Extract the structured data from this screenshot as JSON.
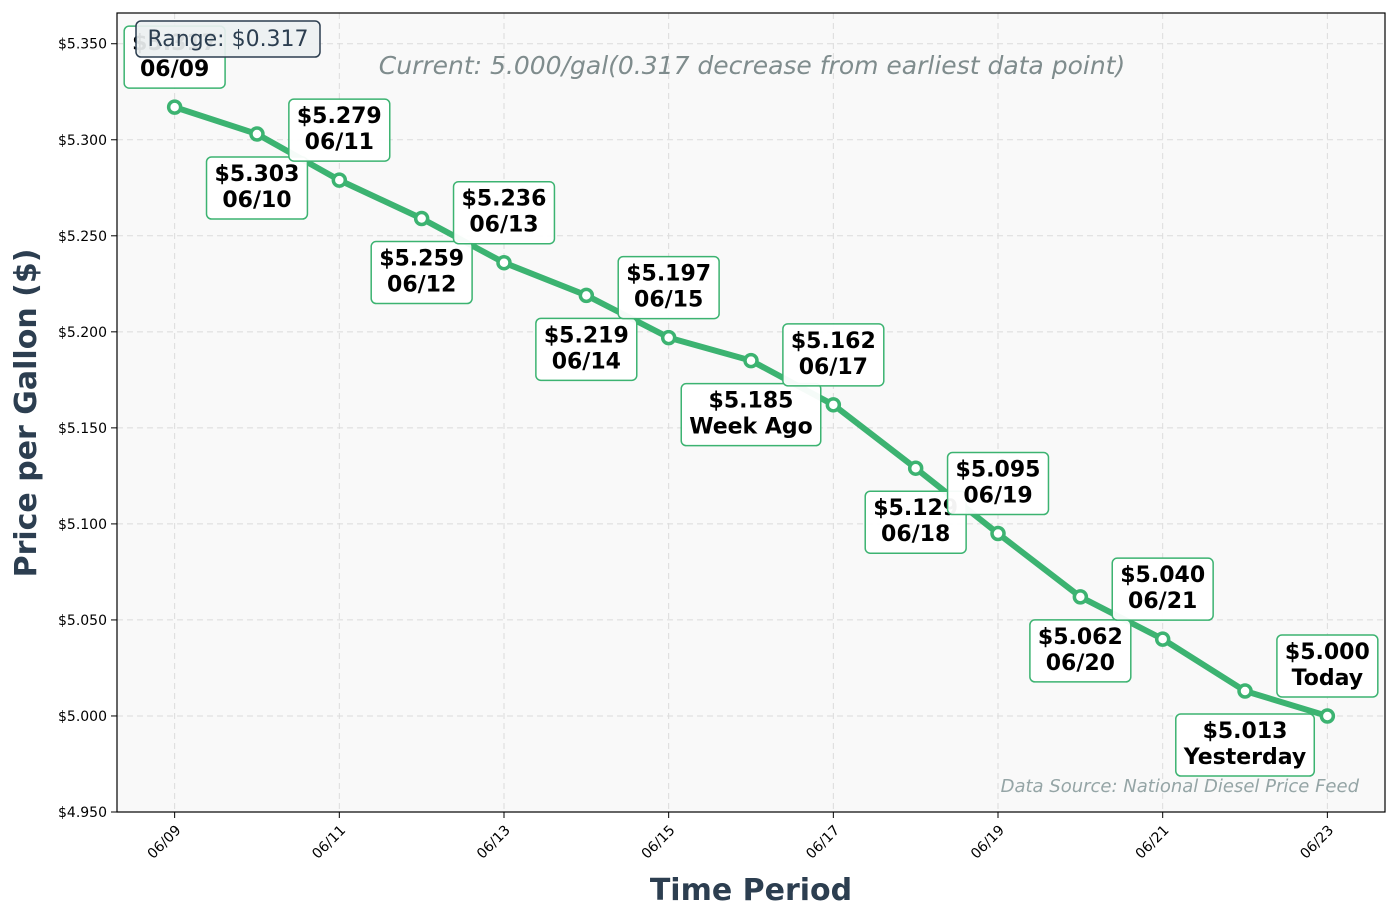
{
  "chart_data": {
    "type": "line",
    "title": "",
    "subtitle": "Current: 5.000/gal(0.317 decrease from earliest data point)",
    "source_note": "Data Source: National Diesel Price Feed",
    "range_box": "Range: $0.317",
    "xlabel": "Time Period",
    "ylabel": "Price per Gallon ($)",
    "ylim": [
      4.95,
      5.366
    ],
    "y_ticks": [
      "$4.950",
      "$5.000",
      "$5.050",
      "$5.100",
      "$5.150",
      "$5.200",
      "$5.250",
      "$5.300",
      "$5.350"
    ],
    "y_tick_values": [
      4.95,
      5.0,
      5.05,
      5.1,
      5.15,
      5.2,
      5.25,
      5.3,
      5.35
    ],
    "x_ticks": [
      "06/09",
      "06/11",
      "06/13",
      "06/15",
      "06/17",
      "06/19",
      "06/21",
      "06/23"
    ],
    "x_tick_indices": [
      0,
      2,
      4,
      6,
      8,
      10,
      12,
      14
    ],
    "x_range": [
      -0.7,
      14.7
    ],
    "grid": true,
    "line_color": "#3cb371",
    "series": [
      {
        "x": [
          "06/09",
          "06/10",
          "06/11",
          "06/12",
          "06/13",
          "06/14",
          "06/15",
          "06/16",
          "06/17",
          "06/18",
          "06/19",
          "06/20",
          "06/21",
          "06/22",
          "06/23"
        ],
        "values": [
          5.317,
          5.303,
          5.279,
          5.259,
          5.236,
          5.219,
          5.197,
          5.185,
          5.162,
          5.129,
          5.095,
          5.062,
          5.04,
          5.013,
          5.0
        ]
      }
    ],
    "annotations": [
      {
        "price": "$5.317",
        "date": "06/09",
        "placement": "above"
      },
      {
        "price": "$5.303",
        "date": "06/10",
        "placement": "below"
      },
      {
        "price": "$5.279",
        "date": "06/11",
        "placement": "above"
      },
      {
        "price": "$5.259",
        "date": "06/12",
        "placement": "below"
      },
      {
        "price": "$5.236",
        "date": "06/13",
        "placement": "above"
      },
      {
        "price": "$5.219",
        "date": "06/14",
        "placement": "below"
      },
      {
        "price": "$5.197",
        "date": "06/15",
        "placement": "above"
      },
      {
        "price": "$5.185",
        "date": "Week Ago",
        "placement": "below"
      },
      {
        "price": "$5.162",
        "date": "06/17",
        "placement": "above"
      },
      {
        "price": "$5.129",
        "date": "06/18",
        "placement": "below"
      },
      {
        "price": "$5.095",
        "date": "06/19",
        "placement": "above"
      },
      {
        "price": "$5.062",
        "date": "06/20",
        "placement": "below"
      },
      {
        "price": "$5.040",
        "date": "06/21",
        "placement": "above"
      },
      {
        "price": "$5.013",
        "date": "Yesterday",
        "placement": "below"
      },
      {
        "price": "$5.000",
        "date": "Today",
        "placement": "above"
      }
    ]
  }
}
